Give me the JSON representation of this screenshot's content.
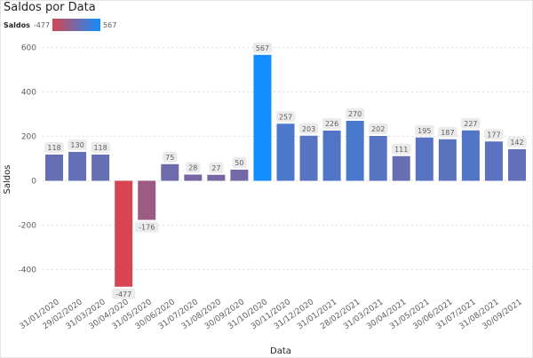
{
  "chart_data": {
    "type": "bar",
    "title": "Saldos por Data",
    "xlabel": "Data",
    "ylabel": "Saldos",
    "ylim": [
      -600,
      650
    ],
    "yticks": [
      -400,
      -200,
      0,
      200,
      400,
      600
    ],
    "grid": true,
    "legend": {
      "label": "Saldos",
      "min": "-477",
      "max": "567",
      "position": "top-left"
    },
    "colors": {
      "min": "#d64550",
      "max": "#118dff"
    },
    "categories": [
      "31/01/2020",
      "29/02/2020",
      "31/03/2020",
      "30/04/2020",
      "31/05/2020",
      "30/06/2020",
      "31/07/2020",
      "31/08/2020",
      "30/09/2020",
      "31/10/2020",
      "30/11/2020",
      "31/12/2020",
      "31/01/2021",
      "28/02/2021",
      "31/03/2021",
      "30/04/2021",
      "31/05/2021",
      "30/06/2021",
      "31/07/2021",
      "31/08/2021",
      "30/09/2021"
    ],
    "values": [
      118,
      130,
      118,
      -477,
      -176,
      75,
      28,
      27,
      50,
      567,
      257,
      203,
      226,
      270,
      202,
      111,
      195,
      187,
      227,
      177,
      142
    ]
  }
}
